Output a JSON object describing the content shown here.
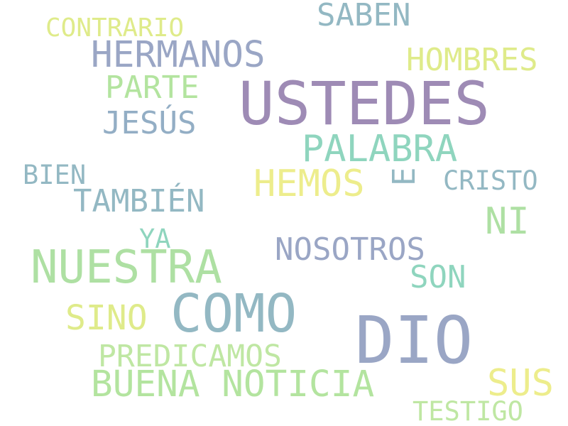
{
  "words": [
    {
      "text": "USTEDES",
      "color": "#9e8bb5"
    },
    {
      "text": "DIO",
      "color": "#9aa6c5"
    },
    {
      "text": "COMO",
      "color": "#93b8c3"
    },
    {
      "text": "NUESTRA",
      "color": "#aee0a3"
    },
    {
      "text": "BUENA NOTICIA",
      "color": "#b3e49f"
    },
    {
      "text": "HERMANOS",
      "color": "#9aa6c5"
    },
    {
      "text": "PALABRA",
      "color": "#8fd5be"
    },
    {
      "text": "HEMOS",
      "color": "#eded8c"
    },
    {
      "text": "NI",
      "color": "#aee0a3"
    },
    {
      "text": "NOSOTROS",
      "color": "#9aa6c5"
    },
    {
      "text": "SINO",
      "color": "#dfeb8a"
    },
    {
      "text": "PREDICAMOS",
      "color": "#bfe7a3"
    },
    {
      "text": "SUS",
      "color": "#eded8c"
    },
    {
      "text": "SABEN",
      "color": "#93b8c3"
    },
    {
      "text": "CONTRARIO",
      "color": "#dfeb8a"
    },
    {
      "text": "HOMBRES",
      "color": "#dfeb8a"
    },
    {
      "text": "PARTE",
      "color": "#b3e49f"
    },
    {
      "text": "JESÚS",
      "color": "#93aec5"
    },
    {
      "text": "TAMBIÉN",
      "color": "#93b8c3"
    },
    {
      "text": "BIEN",
      "color": "#93b8c3"
    },
    {
      "text": "CRISTO",
      "color": "#93b8c3"
    },
    {
      "text": "YA",
      "color": "#8fd5be"
    },
    {
      "text": "SON",
      "color": "#8fd5be"
    },
    {
      "text": "TESTIGO",
      "color": "#bfe7a3"
    },
    {
      "text": "E",
      "color": "#93b8c3"
    }
  ]
}
